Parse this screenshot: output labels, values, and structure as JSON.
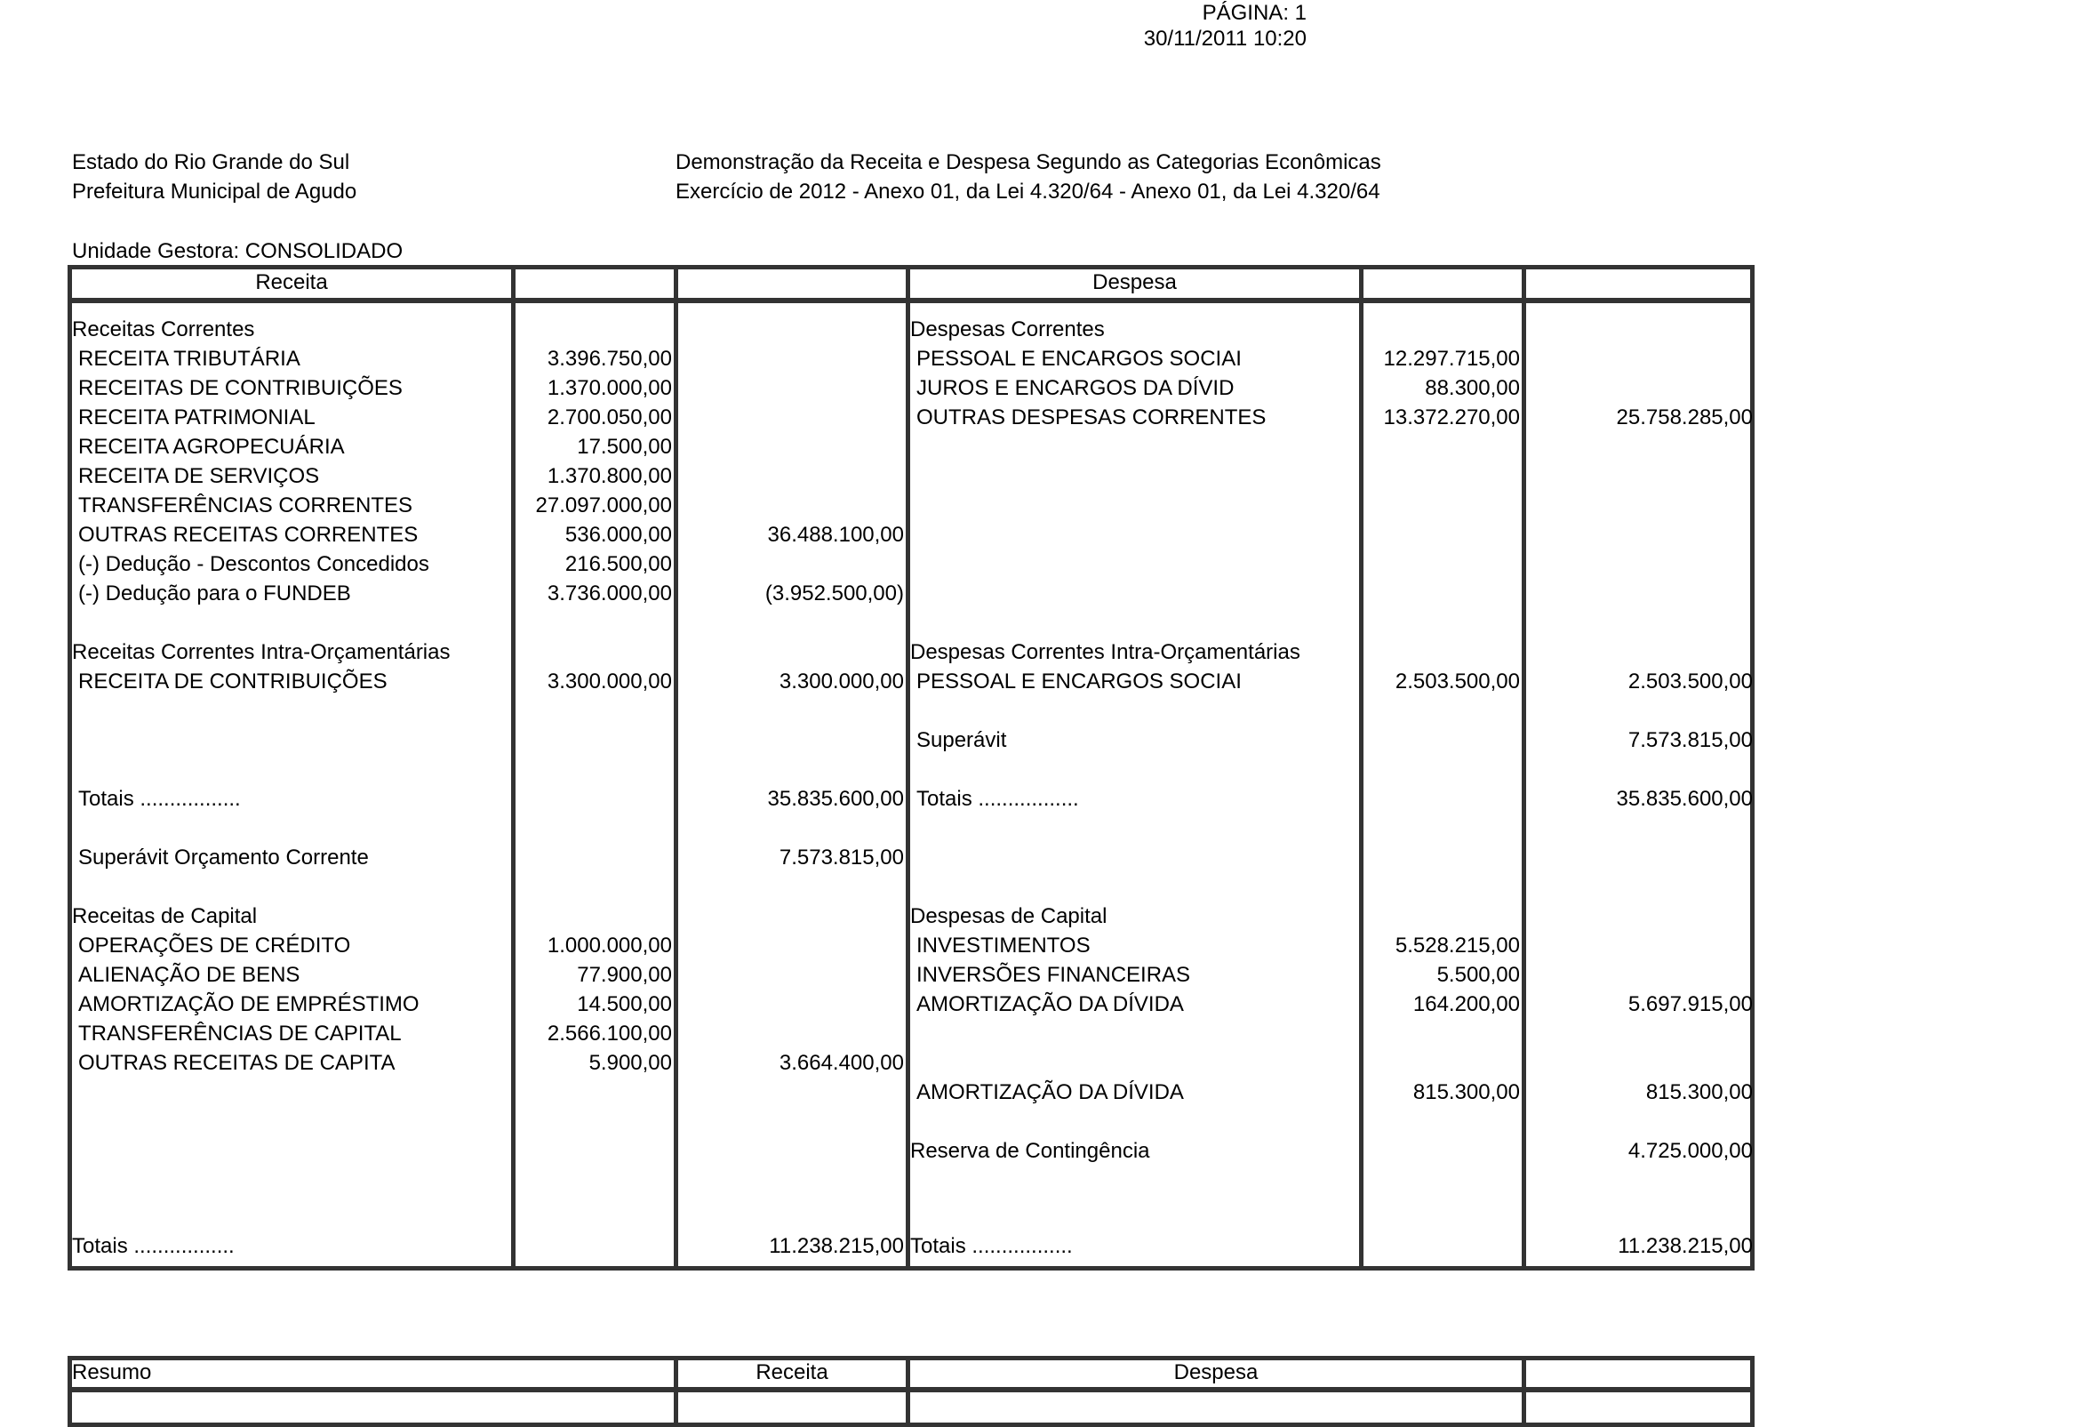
{
  "page_header": {
    "page": "PÁGINA: 1",
    "datetime": "30/11/2011 10:20"
  },
  "header": {
    "state": "Estado do Rio Grande do Sul",
    "municipality": "Prefeitura Municipal de Agudo",
    "title": "Demonstração da Receita e Despesa Segundo as Categorias Econômicas",
    "subtitle": "Exercício de 2012 - Anexo 01, da Lei 4.320/64 - Anexo 01, da Lei 4.320/64",
    "unit": "Unidade Gestora: CONSOLIDADO"
  },
  "main_table": {
    "headers": {
      "receita": "Receita",
      "despesa": "Despesa"
    },
    "rows": [
      {
        "r": 0,
        "left": "Receitas Correntes",
        "left_type": "section",
        "right": "Despesas Correntes",
        "right_type": "section"
      },
      {
        "r": 1,
        "left": "RECEITA TRIBUTÁRIA",
        "v1": "3.396.750,00",
        "right": "PESSOAL E ENCARGOS SOCIAI",
        "v3": "12.297.715,00"
      },
      {
        "r": 2,
        "left": "RECEITAS DE CONTRIBUIÇÕES",
        "v1": "1.370.000,00",
        "right": "JUROS E ENCARGOS DA DÍVID",
        "v3": "88.300,00"
      },
      {
        "r": 3,
        "left": "RECEITA PATRIMONIAL",
        "v1": "2.700.050,00",
        "right": "OUTRAS DESPESAS CORRENTES",
        "v3": "13.372.270,00",
        "v4": "25.758.285,00"
      },
      {
        "r": 4,
        "left": "RECEITA AGROPECUÁRIA",
        "v1": "17.500,00"
      },
      {
        "r": 5,
        "left": "RECEITA DE SERVIÇOS",
        "v1": "1.370.800,00"
      },
      {
        "r": 6,
        "left": "TRANSFERÊNCIAS CORRENTES",
        "v1": "27.097.000,00"
      },
      {
        "r": 7,
        "left": "OUTRAS RECEITAS CORRENTES",
        "v1": "536.000,00",
        "v2": "36.488.100,00"
      },
      {
        "r": 8,
        "left": "(-) Dedução - Descontos Concedidos",
        "v1": "216.500,00"
      },
      {
        "r": 9,
        "left": "(-) Dedução para o FUNDEB",
        "v1": "3.736.000,00",
        "v2": "(3.952.500,00)"
      },
      {
        "r": 11,
        "left": "Receitas Correntes Intra-Orçamentárias",
        "left_type": "section",
        "right": "Despesas Correntes Intra-Orçamentárias",
        "right_type": "section"
      },
      {
        "r": 12,
        "left": "RECEITA DE CONTRIBUIÇÕES",
        "v1": "3.300.000,00",
        "v2": "3.300.000,00",
        "right": "PESSOAL E ENCARGOS SOCIAI",
        "v3": "2.503.500,00",
        "v4": "2.503.500,00"
      },
      {
        "r": 14,
        "right": "Superávit",
        "v4": "7.573.815,00"
      },
      {
        "r": 16,
        "left": "Totais .................",
        "v2": "35.835.600,00",
        "right": "Totais .................",
        "v4": "35.835.600,00"
      },
      {
        "r": 18,
        "left": "Superávit Orçamento Corrente",
        "v2": "7.573.815,00"
      },
      {
        "r": 20,
        "left": "Receitas de Capital",
        "left_type": "section",
        "right": "Despesas de Capital",
        "right_type": "section"
      },
      {
        "r": 21,
        "left": "OPERAÇÕES DE CRÉDITO",
        "v1": "1.000.000,00",
        "right": "INVESTIMENTOS",
        "v3": "5.528.215,00"
      },
      {
        "r": 22,
        "left": "ALIENAÇÃO DE BENS",
        "v1": "77.900,00",
        "right": "INVERSÕES FINANCEIRAS",
        "v3": "5.500,00"
      },
      {
        "r": 23,
        "left": "AMORTIZAÇÃO DE EMPRÉSTIMO",
        "v1": "14.500,00",
        "right": "AMORTIZAÇÃO DA DÍVIDA",
        "v3": "164.200,00",
        "v4": "5.697.915,00"
      },
      {
        "r": 24,
        "left": "TRANSFERÊNCIAS DE CAPITAL",
        "v1": "2.566.100,00"
      },
      {
        "r": 25,
        "left": "OUTRAS RECEITAS DE CAPITA",
        "v1": "5.900,00",
        "v2": "3.664.400,00"
      },
      {
        "r": 26,
        "right": "AMORTIZAÇÃO DA DÍVIDA",
        "v3": "815.300,00",
        "v4": "815.300,00"
      },
      {
        "r": 28,
        "right": "Reserva de Contingência",
        "right_type": "section",
        "v4": "4.725.000,00"
      },
      {
        "r": 31,
        "left": "Totais .................",
        "left_type": "section",
        "v2": "11.238.215,00",
        "right": "Totais .................",
        "right_type": "section",
        "v4": "11.238.215,00"
      }
    ]
  },
  "summary_table": {
    "headers": {
      "resumo": "Resumo",
      "receita": "Receita",
      "despesa": "Despesa"
    }
  }
}
